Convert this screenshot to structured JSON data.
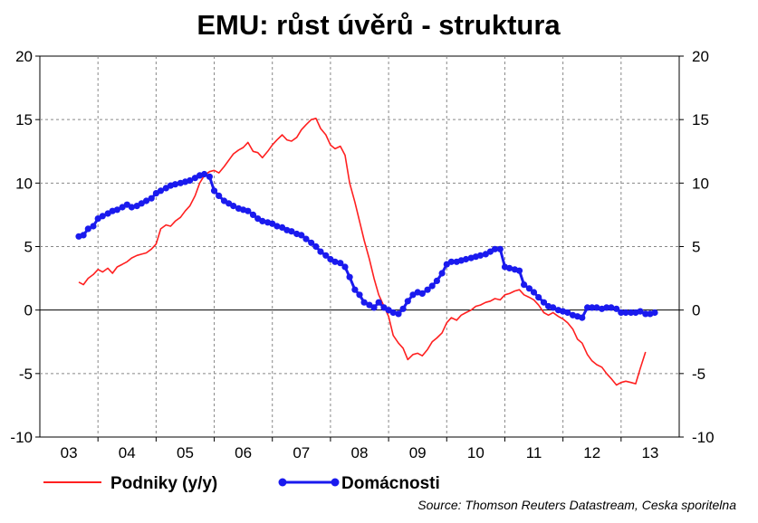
{
  "chart_data": {
    "type": "line",
    "title": "EMU: růst úvěrů - struktura",
    "source": "Source: Thomson Reuters Datastream, Ceska sporitelna",
    "ylim": [
      -10,
      20
    ],
    "yticks": [
      "20",
      "15",
      "10",
      "5",
      "0",
      "-5",
      "-10"
    ],
    "ytick_values": [
      20,
      15,
      10,
      5,
      0,
      -5,
      -10
    ],
    "xlim": [
      2003,
      2014
    ],
    "xtick_labels": [
      "03",
      "04",
      "05",
      "06",
      "07",
      "08",
      "09",
      "10",
      "11",
      "12",
      "13"
    ],
    "grid": true,
    "legend_position": "bottom",
    "series": [
      {
        "name": "Podniky (y/y)",
        "color": "#ff2020",
        "marker": false,
        "points": [
          [
            2003.67,
            2.2
          ],
          [
            2003.75,
            2.0
          ],
          [
            2003.83,
            2.5
          ],
          [
            2003.92,
            2.8
          ],
          [
            2004.0,
            3.2
          ],
          [
            2004.08,
            3.0
          ],
          [
            2004.17,
            3.3
          ],
          [
            2004.25,
            2.9
          ],
          [
            2004.33,
            3.4
          ],
          [
            2004.42,
            3.6
          ],
          [
            2004.5,
            3.8
          ],
          [
            2004.58,
            4.1
          ],
          [
            2004.67,
            4.3
          ],
          [
            2004.75,
            4.4
          ],
          [
            2004.83,
            4.5
          ],
          [
            2004.92,
            4.8
          ],
          [
            2005.0,
            5.2
          ],
          [
            2005.08,
            6.4
          ],
          [
            2005.17,
            6.7
          ],
          [
            2005.25,
            6.6
          ],
          [
            2005.33,
            7.0
          ],
          [
            2005.42,
            7.3
          ],
          [
            2005.5,
            7.8
          ],
          [
            2005.58,
            8.2
          ],
          [
            2005.67,
            9.0
          ],
          [
            2005.75,
            10.0
          ],
          [
            2005.83,
            10.6
          ],
          [
            2005.92,
            10.9
          ],
          [
            2006.0,
            11.0
          ],
          [
            2006.08,
            10.8
          ],
          [
            2006.17,
            11.3
          ],
          [
            2006.25,
            11.8
          ],
          [
            2006.33,
            12.3
          ],
          [
            2006.42,
            12.6
          ],
          [
            2006.5,
            12.8
          ],
          [
            2006.58,
            13.2
          ],
          [
            2006.67,
            12.5
          ],
          [
            2006.75,
            12.4
          ],
          [
            2006.83,
            12.0
          ],
          [
            2006.92,
            12.5
          ],
          [
            2007.0,
            13.0
          ],
          [
            2007.08,
            13.4
          ],
          [
            2007.17,
            13.8
          ],
          [
            2007.25,
            13.4
          ],
          [
            2007.33,
            13.3
          ],
          [
            2007.42,
            13.6
          ],
          [
            2007.5,
            14.2
          ],
          [
            2007.58,
            14.6
          ],
          [
            2007.67,
            15.0
          ],
          [
            2007.75,
            15.1
          ],
          [
            2007.83,
            14.3
          ],
          [
            2007.92,
            13.8
          ],
          [
            2008.0,
            13.0
          ],
          [
            2008.08,
            12.7
          ],
          [
            2008.17,
            12.9
          ],
          [
            2008.25,
            12.2
          ],
          [
            2008.33,
            10.0
          ],
          [
            2008.42,
            8.5
          ],
          [
            2008.5,
            7.0
          ],
          [
            2008.58,
            5.5
          ],
          [
            2008.67,
            4.0
          ],
          [
            2008.75,
            2.5
          ],
          [
            2008.83,
            1.2
          ],
          [
            2008.92,
            0.3
          ],
          [
            2009.0,
            -0.5
          ],
          [
            2009.08,
            -2.0
          ],
          [
            2009.17,
            -2.6
          ],
          [
            2009.25,
            -3.0
          ],
          [
            2009.33,
            -3.9
          ],
          [
            2009.42,
            -3.5
          ],
          [
            2009.5,
            -3.4
          ],
          [
            2009.58,
            -3.6
          ],
          [
            2009.67,
            -3.1
          ],
          [
            2009.75,
            -2.5
          ],
          [
            2009.83,
            -2.2
          ],
          [
            2009.92,
            -1.8
          ],
          [
            2010.0,
            -1.0
          ],
          [
            2010.08,
            -0.6
          ],
          [
            2010.17,
            -0.8
          ],
          [
            2010.25,
            -0.4
          ],
          [
            2010.33,
            -0.2
          ],
          [
            2010.42,
            0.0
          ],
          [
            2010.5,
            0.3
          ],
          [
            2010.58,
            0.4
          ],
          [
            2010.67,
            0.6
          ],
          [
            2010.75,
            0.7
          ],
          [
            2010.83,
            0.9
          ],
          [
            2010.92,
            0.8
          ],
          [
            2011.0,
            1.2
          ],
          [
            2011.08,
            1.3
          ],
          [
            2011.17,
            1.5
          ],
          [
            2011.25,
            1.6
          ],
          [
            2011.33,
            1.2
          ],
          [
            2011.42,
            1.0
          ],
          [
            2011.5,
            0.8
          ],
          [
            2011.58,
            0.4
          ],
          [
            2011.67,
            -0.2
          ],
          [
            2011.75,
            -0.4
          ],
          [
            2011.83,
            -0.2
          ],
          [
            2011.92,
            -0.5
          ],
          [
            2012.0,
            -0.7
          ],
          [
            2012.08,
            -1.0
          ],
          [
            2012.17,
            -1.5
          ],
          [
            2012.25,
            -2.3
          ],
          [
            2012.33,
            -2.6
          ],
          [
            2012.42,
            -3.5
          ],
          [
            2012.5,
            -4.0
          ],
          [
            2012.58,
            -4.3
          ],
          [
            2012.67,
            -4.5
          ],
          [
            2012.75,
            -5.0
          ],
          [
            2012.83,
            -5.4
          ],
          [
            2012.92,
            -5.9
          ],
          [
            2013.0,
            -5.7
          ],
          [
            2013.08,
            -5.6
          ],
          [
            2013.17,
            -5.7
          ],
          [
            2013.25,
            -5.8
          ],
          [
            2013.33,
            -4.6
          ],
          [
            2013.42,
            -3.3
          ]
        ]
      },
      {
        "name": "Domácnosti",
        "color": "#1a1aee",
        "marker": true,
        "points": [
          [
            2003.67,
            5.8
          ],
          [
            2003.75,
            5.9
          ],
          [
            2003.83,
            6.4
          ],
          [
            2003.92,
            6.6
          ],
          [
            2004.0,
            7.2
          ],
          [
            2004.08,
            7.4
          ],
          [
            2004.17,
            7.6
          ],
          [
            2004.25,
            7.8
          ],
          [
            2004.33,
            7.9
          ],
          [
            2004.42,
            8.1
          ],
          [
            2004.5,
            8.3
          ],
          [
            2004.58,
            8.1
          ],
          [
            2004.67,
            8.2
          ],
          [
            2004.75,
            8.4
          ],
          [
            2004.83,
            8.6
          ],
          [
            2004.92,
            8.8
          ],
          [
            2005.0,
            9.2
          ],
          [
            2005.08,
            9.4
          ],
          [
            2005.17,
            9.6
          ],
          [
            2005.25,
            9.8
          ],
          [
            2005.33,
            9.9
          ],
          [
            2005.42,
            10.0
          ],
          [
            2005.5,
            10.1
          ],
          [
            2005.58,
            10.2
          ],
          [
            2005.67,
            10.4
          ],
          [
            2005.75,
            10.6
          ],
          [
            2005.83,
            10.7
          ],
          [
            2005.92,
            10.5
          ],
          [
            2006.0,
            9.4
          ],
          [
            2006.08,
            9.0
          ],
          [
            2006.17,
            8.6
          ],
          [
            2006.25,
            8.4
          ],
          [
            2006.33,
            8.2
          ],
          [
            2006.42,
            8.0
          ],
          [
            2006.5,
            7.9
          ],
          [
            2006.58,
            7.8
          ],
          [
            2006.67,
            7.5
          ],
          [
            2006.75,
            7.2
          ],
          [
            2006.83,
            7.0
          ],
          [
            2006.92,
            6.9
          ],
          [
            2007.0,
            6.8
          ],
          [
            2007.08,
            6.6
          ],
          [
            2007.17,
            6.5
          ],
          [
            2007.25,
            6.3
          ],
          [
            2007.33,
            6.2
          ],
          [
            2007.42,
            6.0
          ],
          [
            2007.5,
            5.9
          ],
          [
            2007.58,
            5.6
          ],
          [
            2007.67,
            5.3
          ],
          [
            2007.75,
            5.0
          ],
          [
            2007.83,
            4.6
          ],
          [
            2007.92,
            4.3
          ],
          [
            2008.0,
            4.0
          ],
          [
            2008.08,
            3.8
          ],
          [
            2008.17,
            3.7
          ],
          [
            2008.25,
            3.4
          ],
          [
            2008.33,
            2.6
          ],
          [
            2008.42,
            1.6
          ],
          [
            2008.5,
            1.2
          ],
          [
            2008.58,
            0.6
          ],
          [
            2008.67,
            0.4
          ],
          [
            2008.75,
            0.2
          ],
          [
            2008.83,
            0.6
          ],
          [
            2008.92,
            0.2
          ],
          [
            2009.0,
            0.0
          ],
          [
            2009.08,
            -0.2
          ],
          [
            2009.17,
            -0.3
          ],
          [
            2009.25,
            0.1
          ],
          [
            2009.33,
            0.7
          ],
          [
            2009.42,
            1.2
          ],
          [
            2009.5,
            1.4
          ],
          [
            2009.58,
            1.3
          ],
          [
            2009.67,
            1.6
          ],
          [
            2009.75,
            1.9
          ],
          [
            2009.83,
            2.3
          ],
          [
            2009.92,
            2.9
          ],
          [
            2010.0,
            3.6
          ],
          [
            2010.08,
            3.8
          ],
          [
            2010.17,
            3.8
          ],
          [
            2010.25,
            3.9
          ],
          [
            2010.33,
            4.0
          ],
          [
            2010.42,
            4.1
          ],
          [
            2010.5,
            4.2
          ],
          [
            2010.58,
            4.3
          ],
          [
            2010.67,
            4.4
          ],
          [
            2010.75,
            4.6
          ],
          [
            2010.83,
            4.8
          ],
          [
            2010.92,
            4.8
          ],
          [
            2011.0,
            3.4
          ],
          [
            2011.08,
            3.3
          ],
          [
            2011.17,
            3.2
          ],
          [
            2011.25,
            3.1
          ],
          [
            2011.33,
            2.0
          ],
          [
            2011.42,
            1.7
          ],
          [
            2011.5,
            1.4
          ],
          [
            2011.58,
            1.0
          ],
          [
            2011.67,
            0.6
          ],
          [
            2011.75,
            0.3
          ],
          [
            2011.83,
            0.2
          ],
          [
            2011.92,
            0.0
          ],
          [
            2012.0,
            -0.1
          ],
          [
            2012.08,
            -0.2
          ],
          [
            2012.17,
            -0.4
          ],
          [
            2012.25,
            -0.5
          ],
          [
            2012.33,
            -0.6
          ],
          [
            2012.42,
            0.2
          ],
          [
            2012.5,
            0.2
          ],
          [
            2012.58,
            0.2
          ],
          [
            2012.67,
            0.1
          ],
          [
            2012.75,
            0.2
          ],
          [
            2012.83,
            0.2
          ],
          [
            2012.92,
            0.1
          ],
          [
            2013.0,
            -0.2
          ],
          [
            2013.08,
            -0.2
          ],
          [
            2013.17,
            -0.2
          ],
          [
            2013.25,
            -0.2
          ],
          [
            2013.33,
            -0.1
          ],
          [
            2013.42,
            -0.3
          ],
          [
            2013.5,
            -0.3
          ],
          [
            2013.58,
            -0.2
          ]
        ]
      }
    ]
  }
}
